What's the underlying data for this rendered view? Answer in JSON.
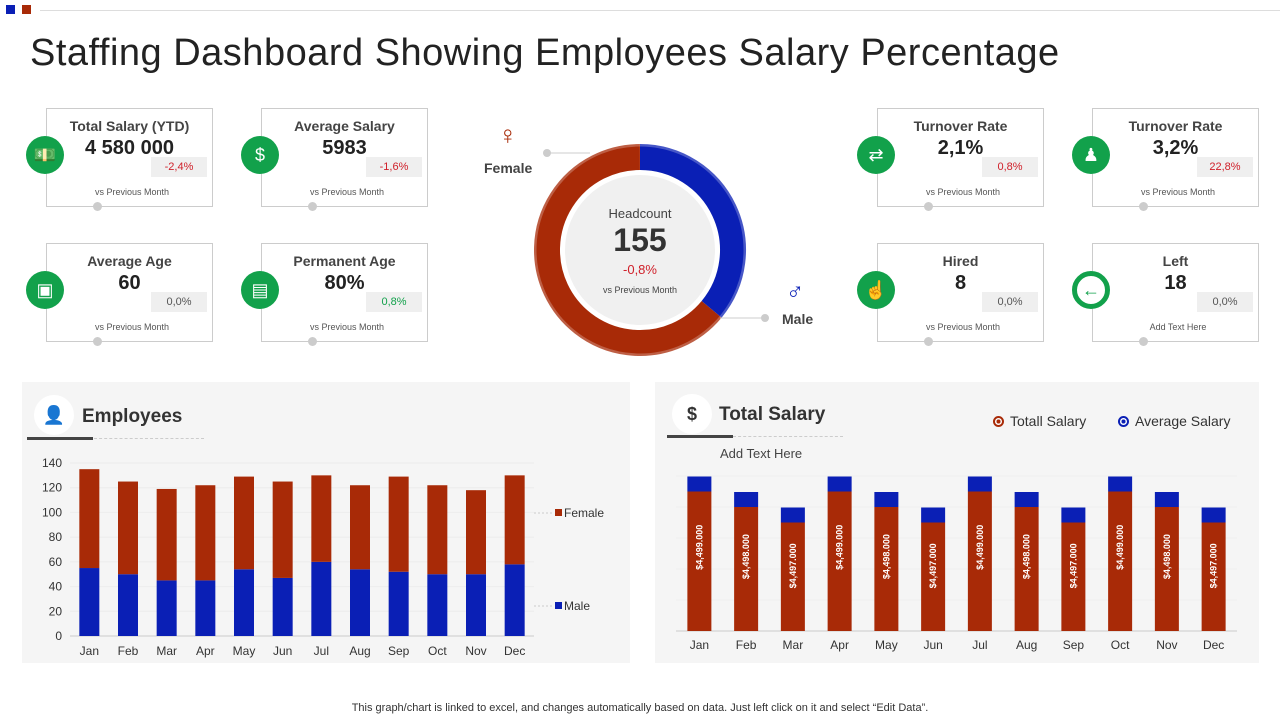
{
  "brand_colors": {
    "blue": "#0a1fb5",
    "red": "#a82a07",
    "green": "#12a14b"
  },
  "title": "Staffing Dashboard Showing Employees Salary Percentage",
  "cards": [
    {
      "title": "Total Salary (YTD)",
      "value": "4 580 000",
      "change": "-2,4%",
      "change_color": "red",
      "note": "vs Previous Month",
      "icon": "money-hand-icon"
    },
    {
      "title": "Average Salary",
      "value": "5983",
      "change": "-1,6%",
      "change_color": "red",
      "note": "vs Previous Month",
      "icon": "coin-hands-icon"
    },
    {
      "title": "Average Age",
      "value": "60",
      "change": "0,0%",
      "change_color": "grey",
      "note": "vs Previous Month",
      "icon": "laptop-calendar-icon"
    },
    {
      "title": "Permanent Age",
      "value": "80%",
      "change": "0,8%",
      "change_color": "green",
      "note": "vs Previous Month",
      "icon": "documents-icon"
    },
    {
      "title": "Turnover Rate",
      "value": "2,1%",
      "change": "0,8%",
      "change_color": "red",
      "note": "vs Previous Month",
      "icon": "people-exchange-icon"
    },
    {
      "title": "Turnover Rate",
      "value": "3,2%",
      "change": "22,8%",
      "change_color": "red",
      "note": "vs Previous Month",
      "icon": "org-chart-icon"
    },
    {
      "title": "Hired",
      "value": "8",
      "change": "0,0%",
      "change_color": "grey",
      "note": "vs Previous Month",
      "icon": "hand-person-icon"
    },
    {
      "title": "Left",
      "value": "18",
      "change": "0,0%",
      "change_color": "grey",
      "note": "Add Text Here",
      "icon": "arrow-left-icon"
    }
  ],
  "headcount": {
    "label": "Headcount",
    "value": "155",
    "change": "-0,8%",
    "note": "vs Previous Month",
    "female_label": "Female",
    "male_label": "Male",
    "male_fraction": 0.36,
    "female_fraction": 0.64
  },
  "employees_panel": {
    "title": "Employees"
  },
  "salary_panel": {
    "title": "Total Salary",
    "subtitle": "Add Text Here",
    "legend": [
      "Totall Salary",
      "Average Salary"
    ]
  },
  "footer": "This graph/chart is linked to excel,  and changes automatically based on data. Just left click on it and select “Edit Data”.",
  "chart_data": [
    {
      "type": "bar",
      "stacked": true,
      "categories": [
        "Jan",
        "Feb",
        "Mar",
        "Apr",
        "May",
        "Jun",
        "Jul",
        "Aug",
        "Sep",
        "Oct",
        "Nov",
        "Dec"
      ],
      "series": [
        {
          "name": "Male",
          "values": [
            55,
            50,
            45,
            45,
            54,
            47,
            60,
            54,
            52,
            50,
            50,
            58
          ],
          "color": "#0a1fb5"
        },
        {
          "name": "Female",
          "values": [
            80,
            75,
            74,
            77,
            75,
            78,
            70,
            68,
            77,
            72,
            68,
            72
          ],
          "color": "#a82a07"
        }
      ],
      "ylim": [
        0,
        140
      ],
      "yticks": [
        0,
        20,
        40,
        60,
        80,
        100,
        120,
        140
      ],
      "grid": true,
      "legend": "right"
    },
    {
      "type": "bar",
      "stacked": true,
      "categories": [
        "Jan",
        "Feb",
        "Mar",
        "Apr",
        "May",
        "Jun",
        "Jul",
        "Aug",
        "Sep",
        "Oct",
        "Nov",
        "Dec"
      ],
      "series": [
        {
          "name": "Totall Salary",
          "values": [
            4499000,
            4498000,
            4497000,
            4499000,
            4498000,
            4497000,
            4499000,
            4498000,
            4497000,
            4499000,
            4498000,
            4497000
          ],
          "labels": [
            "$4,499.000",
            "$4,498.000",
            "$4,497.000",
            "$4,499.000",
            "$4,498.000",
            "$4,497.000",
            "$4,499.000",
            "$4,498.000",
            "$4,497.000",
            "$4,499.000",
            "$4,498.000",
            "$4,497.000"
          ],
          "color": "#a82a07"
        },
        {
          "name": "Average Salary",
          "color": "#0a1fb5"
        }
      ],
      "grid": true,
      "legend": "top-right"
    }
  ]
}
